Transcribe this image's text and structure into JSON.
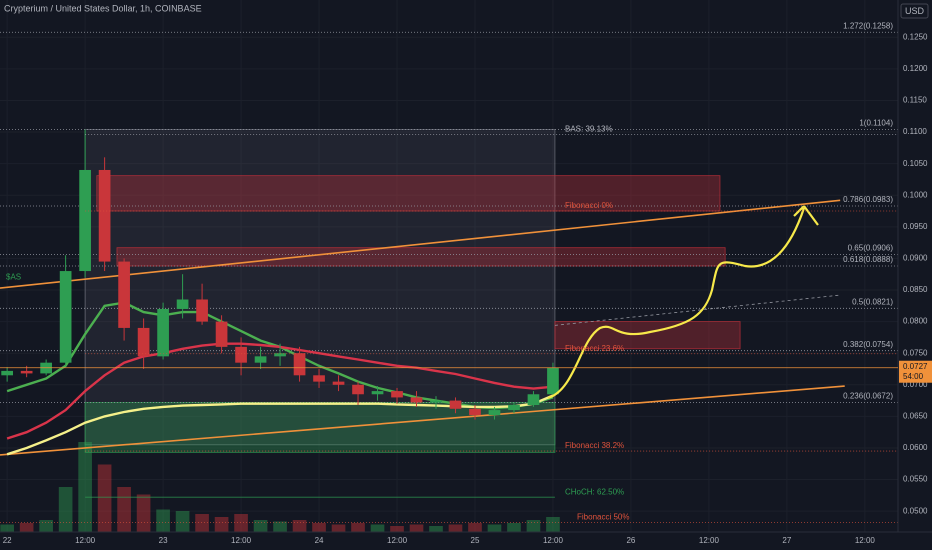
{
  "chart_data": {
    "type": "candlestick",
    "title": "Crypterium / United States Dollar, 1h, COINBASE",
    "currency": "USD",
    "xlim": [
      -1.1,
      137.1
    ],
    "ylim": [
      0.0467,
      0.1309
    ],
    "xticks": [
      {
        "value": 0,
        "label": "22"
      },
      {
        "value": 12,
        "label": "12:00"
      },
      {
        "value": 24,
        "label": "23"
      },
      {
        "value": 36,
        "label": "12:00"
      },
      {
        "value": 48,
        "label": "24"
      },
      {
        "value": 60,
        "label": "12:00"
      },
      {
        "value": 72,
        "label": "25"
      },
      {
        "value": 84,
        "label": "12:00"
      },
      {
        "value": 96,
        "label": "26"
      },
      {
        "value": 108,
        "label": "12:00"
      },
      {
        "value": 120,
        "label": "27"
      },
      {
        "value": 132,
        "label": "12:00"
      }
    ],
    "yticks": [
      {
        "value": 0.05,
        "label": "0.0500"
      },
      {
        "value": 0.055,
        "label": "0.0550"
      },
      {
        "value": 0.06,
        "label": "0.0600"
      },
      {
        "value": 0.065,
        "label": "0.0650"
      },
      {
        "value": 0.07,
        "label": "0.0700"
      },
      {
        "value": 0.075,
        "label": "0.0750"
      },
      {
        "value": 0.08,
        "label": "0.0800"
      },
      {
        "value": 0.085,
        "label": "0.0850"
      },
      {
        "value": 0.09,
        "label": "0.0900"
      },
      {
        "value": 0.095,
        "label": "0.0950"
      },
      {
        "value": 0.1,
        "label": "0.1000"
      },
      {
        "value": 0.105,
        "label": "0.1050"
      },
      {
        "value": 0.11,
        "label": "0.1100"
      },
      {
        "value": 0.115,
        "label": "0.1150"
      },
      {
        "value": 0.12,
        "label": "0.1200"
      },
      {
        "value": 0.125,
        "label": "0.1250"
      }
    ],
    "grid": true,
    "up_color": "#2e9e52",
    "down_color": "#c9363a",
    "x": [
      0,
      3,
      6,
      9,
      12,
      15,
      18,
      21,
      24,
      27,
      30,
      33,
      36,
      39,
      42,
      45,
      48,
      51,
      54,
      57,
      60,
      63,
      66,
      69,
      72,
      75,
      78,
      81,
      84
    ],
    "open": [
      0.0715,
      0.0722,
      0.0718,
      0.0735,
      0.088,
      0.104,
      0.0895,
      0.079,
      0.0745,
      0.082,
      0.0835,
      0.08,
      0.076,
      0.0735,
      0.0745,
      0.075,
      0.0715,
      0.0705,
      0.07,
      0.0685,
      0.069,
      0.068,
      0.0672,
      0.0675,
      0.0662,
      0.0652,
      0.066,
      0.0668,
      0.0685
    ],
    "high": [
      0.0728,
      0.073,
      0.074,
      0.0905,
      0.1104,
      0.106,
      0.09,
      0.0805,
      0.083,
      0.0875,
      0.086,
      0.081,
      0.0775,
      0.076,
      0.0765,
      0.076,
      0.0725,
      0.0715,
      0.0705,
      0.0698,
      0.0695,
      0.069,
      0.0682,
      0.068,
      0.0668,
      0.0665,
      0.0672,
      0.069,
      0.0735
    ],
    "low": [
      0.0705,
      0.0712,
      0.0715,
      0.073,
      0.087,
      0.088,
      0.077,
      0.0725,
      0.074,
      0.0805,
      0.0795,
      0.075,
      0.0715,
      0.0725,
      0.073,
      0.0705,
      0.0695,
      0.069,
      0.0668,
      0.0675,
      0.067,
      0.0665,
      0.0662,
      0.0655,
      0.0645,
      0.0645,
      0.0655,
      0.0665,
      0.068
    ],
    "close": [
      0.0722,
      0.0718,
      0.0735,
      0.088,
      0.104,
      0.0895,
      0.079,
      0.0745,
      0.082,
      0.0835,
      0.08,
      0.076,
      0.0735,
      0.0745,
      0.075,
      0.0715,
      0.0705,
      0.07,
      0.0685,
      0.069,
      0.068,
      0.0672,
      0.0675,
      0.0662,
      0.0652,
      0.066,
      0.0668,
      0.0685,
      0.0727
    ],
    "volume": [
      5,
      6,
      8,
      30,
      60,
      45,
      30,
      25,
      15,
      14,
      12,
      10,
      12,
      8,
      7,
      8,
      6,
      5,
      6,
      5,
      4,
      5,
      4,
      5,
      6,
      5,
      6,
      8,
      10
    ],
    "series": [
      {
        "color": "#4caf50",
        "values": [
          0.069,
          0.07,
          0.071,
          0.073,
          0.078,
          0.0825,
          0.083,
          0.0815,
          0.081,
          0.0815,
          0.0815,
          0.08,
          0.0785,
          0.077,
          0.076,
          0.0745,
          0.073,
          0.0718,
          0.0705,
          0.0695,
          0.0688,
          0.068,
          0.0675,
          0.067,
          0.0665,
          0.0663,
          0.0665,
          0.067,
          0.068
        ]
      },
      {
        "color": "#d9344a",
        "values": [
          0.0615,
          0.0625,
          0.064,
          0.066,
          0.069,
          0.0715,
          0.0735,
          0.0745,
          0.075,
          0.0757,
          0.0762,
          0.0765,
          0.0765,
          0.0763,
          0.076,
          0.0755,
          0.075,
          0.0745,
          0.074,
          0.0735,
          0.073,
          0.0727,
          0.0722,
          0.0717,
          0.071,
          0.0703,
          0.0697,
          0.0694,
          0.0697
        ]
      },
      {
        "color": "#f5f08a",
        "values": [
          0.059,
          0.06,
          0.0612,
          0.0625,
          0.064,
          0.065,
          0.0657,
          0.0662,
          0.0665,
          0.0667,
          0.0668,
          0.0669,
          0.067,
          0.067,
          0.067,
          0.067,
          0.067,
          0.067,
          0.067,
          0.067,
          0.0669,
          0.0668,
          0.0667,
          0.0666,
          0.0665,
          0.0665,
          0.0666,
          0.067,
          0.0683
        ]
      }
    ],
    "zones": [
      {
        "color": "#787b86",
        "time": [
          12,
          84.3
        ],
        "price": [
          0.0605,
          0.1104
        ]
      },
      {
        "color": "#c2303a",
        "time": [
          13.8,
          109.7
        ],
        "price": [
          0.0975,
          0.1031
        ]
      },
      {
        "color": "#c2303a",
        "time": [
          16.9,
          110.5
        ],
        "price": [
          0.0888,
          0.0917
        ]
      },
      {
        "color": "#c2303a",
        "time": [
          84.3,
          112.8
        ],
        "price": [
          0.0757,
          0.08
        ]
      },
      {
        "color": "#2e9e52",
        "time": [
          12,
          84.3
        ],
        "price": [
          0.0593,
          0.0672
        ]
      }
    ],
    "fib_levels": [
      {
        "label": "1.272(0.1258)",
        "value": 0.1258
      },
      {
        "label": "1(0.1104)",
        "value": 0.1104
      },
      {
        "label": "0.786(0.0983)",
        "value": 0.0983
      },
      {
        "label": "0.65(0.0906)",
        "value": 0.0906
      },
      {
        "label": "0.618(0.0888)",
        "value": 0.0888
      },
      {
        "label": "0.5(0.0821)",
        "value": 0.0821
      },
      {
        "label": "0.382(0.0754)",
        "value": 0.0754
      },
      {
        "label": "0.236(0.0672)",
        "value": 0.0672
      }
    ],
    "annotations": [
      {
        "text": "BAS: 39.13%",
        "value": 0.1104,
        "time": 12,
        "color": "#b2b5be"
      },
      {
        "text": "Fibonacci 0%",
        "value": 0.0983,
        "time": 12,
        "color": "#e0533c"
      },
      {
        "text": "Fibonacci 23.6%",
        "value": 0.0757,
        "time": 12,
        "color": "#e0533c"
      },
      {
        "text": "Fibonacci 38.2%",
        "value": 0.0603,
        "time": 12,
        "color": "#e0533c"
      },
      {
        "text": "CHoCH: 62.50%",
        "value": 0.053,
        "time": 12,
        "color": "#2e9e52"
      },
      {
        "text": "Fibonacci 50%",
        "value": 0.049,
        "time": -1.1,
        "color": "#e0533c"
      },
      {
        "text": "$AS",
        "value": 0.087,
        "time": -1.1,
        "color": "#2e9e52"
      }
    ],
    "trendlines": [
      {
        "color": "#f0913a",
        "from": [
          -1.1,
          0.0853
        ],
        "to": [
          128.2,
          0.0992
        ]
      },
      {
        "color": "#f0913a",
        "from": [
          -1.1,
          0.0589
        ],
        "to": [
          128.9,
          0.0698
        ]
      },
      {
        "color": "#9598a1",
        "from": [
          84.3,
          0.0794
        ],
        "to": [
          128.2,
          0.0842
        ]
      }
    ],
    "price": 0.0727,
    "countdown": "54:00"
  }
}
